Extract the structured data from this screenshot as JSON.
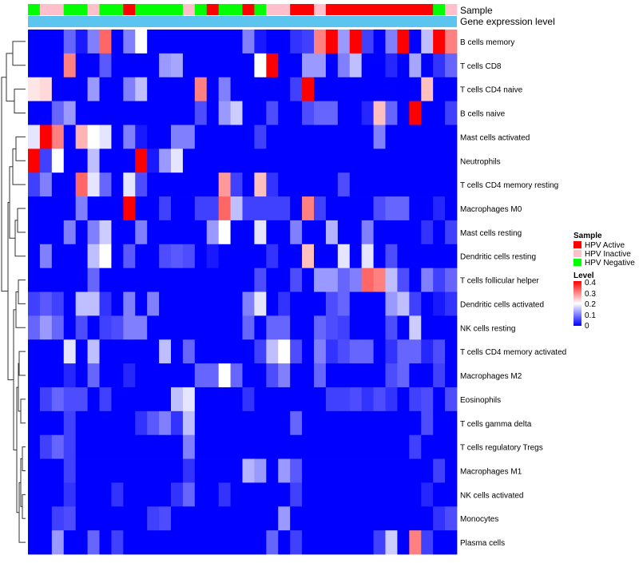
{
  "chart_data": {
    "type": "heatmap",
    "title": "",
    "annotation_tracks": [
      {
        "name": "Sample",
        "label": "Sample"
      },
      {
        "name": "Gene expression level",
        "label": "Gene expression level",
        "color": "#5bc4ef"
      }
    ],
    "sample_groups": [
      "N",
      "I",
      "I",
      "N",
      "N",
      "I",
      "N",
      "N",
      "A",
      "N",
      "N",
      "N",
      "N",
      "I",
      "N",
      "A",
      "N",
      "N",
      "A",
      "N",
      "I",
      "I",
      "A",
      "A",
      "I",
      "A",
      "A",
      "A",
      "A",
      "A",
      "A",
      "A",
      "A",
      "A",
      "N",
      "I"
    ],
    "rows": [
      "B cells memory",
      "T cells CD8",
      "T cells CD4 naive",
      "B cells naive",
      "Mast cells activated",
      "Neutrophils",
      "T cells CD4 memory resting",
      "Macrophages M0",
      "Mast cells resting",
      "Dendritic cells resting",
      "T cells follicular helper",
      "Dendritic cells activated",
      "NK cells resting",
      "T cells CD4 memory activated",
      "Macrophages M2",
      "Eosinophils",
      "T cells gamma delta",
      "T cells regulatory  Tregs",
      "Macrophages M1",
      "NK cells activated",
      "Monocytes",
      "Plasma cells"
    ],
    "values": [
      [
        0.0,
        0.0,
        0.0,
        0.08,
        0.02,
        0.1,
        0.32,
        0.0,
        0.1,
        0.2,
        0.0,
        0.0,
        0.0,
        0.0,
        0.0,
        0.0,
        0.0,
        0.0,
        0.1,
        0.02,
        0.0,
        0.0,
        0.04,
        0.05,
        0.3,
        0.4,
        0.12,
        0.4,
        0.05,
        0.0,
        0.1,
        0.4,
        0.0,
        0.15,
        0.4,
        0.3
      ],
      [
        0.0,
        0.0,
        0.0,
        0.3,
        0.0,
        0.0,
        0.07,
        0.0,
        0.0,
        0.0,
        0.0,
        0.12,
        0.13,
        0.0,
        0.0,
        0.0,
        0.0,
        0.0,
        0.0,
        0.2,
        0.4,
        0.0,
        0.0,
        0.12,
        0.12,
        0.0,
        0.1,
        0.15,
        0.0,
        0.0,
        0.03,
        0.0,
        0.13,
        0.0,
        0.04,
        0.08
      ],
      [
        0.22,
        0.23,
        0.0,
        0.0,
        0.0,
        0.12,
        0.0,
        0.0,
        0.1,
        0.15,
        0.0,
        0.0,
        0.0,
        0.0,
        0.3,
        0.0,
        0.1,
        0.0,
        0.0,
        0.0,
        0.0,
        0.0,
        0.05,
        0.4,
        0.0,
        0.0,
        0.0,
        0.0,
        0.0,
        0.0,
        0.0,
        0.0,
        0.0,
        0.25,
        0.0,
        0.0
      ],
      [
        0.0,
        0.0,
        0.08,
        0.12,
        0.0,
        0.0,
        0.0,
        0.0,
        0.0,
        0.0,
        0.0,
        0.0,
        0.0,
        0.0,
        0.06,
        0.0,
        0.12,
        0.16,
        0.0,
        0.0,
        0.06,
        0.0,
        0.0,
        0.06,
        0.08,
        0.08,
        0.0,
        0.0,
        0.03,
        0.25,
        0.08,
        0.0,
        0.4,
        0.0,
        0.0,
        0.05
      ],
      [
        0.18,
        0.4,
        0.3,
        0.0,
        0.26,
        0.2,
        0.18,
        0.0,
        0.1,
        0.02,
        0.0,
        0.0,
        0.1,
        0.1,
        0.0,
        0.0,
        0.0,
        0.0,
        0.0,
        0.05,
        0.0,
        0.0,
        0.0,
        0.0,
        0.0,
        0.0,
        0.0,
        0.0,
        0.0,
        0.1,
        0.0,
        0.0,
        0.0,
        0.0,
        0.0,
        0.0
      ],
      [
        0.4,
        0.05,
        0.2,
        0.0,
        0.0,
        0.15,
        0.0,
        0.0,
        0.0,
        0.4,
        0.02,
        0.12,
        0.18,
        0.0,
        0.0,
        0.0,
        0.0,
        0.0,
        0.0,
        0.0,
        0.0,
        0.0,
        0.0,
        0.0,
        0.0,
        0.0,
        0.0,
        0.0,
        0.0,
        0.0,
        0.0,
        0.0,
        0.0,
        0.0,
        0.0,
        0.0
      ],
      [
        0.05,
        0.1,
        0.0,
        0.0,
        0.32,
        0.18,
        0.08,
        0.0,
        0.18,
        0.06,
        0.0,
        0.0,
        0.0,
        0.0,
        0.0,
        0.0,
        0.28,
        0.05,
        0.0,
        0.25,
        0.04,
        0.0,
        0.0,
        0.0,
        0.0,
        0.0,
        0.06,
        0.0,
        0.0,
        0.0,
        0.0,
        0.0,
        0.0,
        0.0,
        0.0,
        0.0
      ],
      [
        0.0,
        0.0,
        0.0,
        0.0,
        0.1,
        0.0,
        0.0,
        0.0,
        0.4,
        0.0,
        0.0,
        0.05,
        0.0,
        0.0,
        0.05,
        0.05,
        0.32,
        0.15,
        0.05,
        0.05,
        0.05,
        0.05,
        0.0,
        0.3,
        0.05,
        0.0,
        0.0,
        0.0,
        0.0,
        0.06,
        0.08,
        0.08,
        0.0,
        0.0,
        0.03,
        0.0
      ],
      [
        0.0,
        0.0,
        0.0,
        0.1,
        0.0,
        0.1,
        0.16,
        0.0,
        0.0,
        0.1,
        0.0,
        0.0,
        0.0,
        0.0,
        0.0,
        0.12,
        0.2,
        0.0,
        0.0,
        0.18,
        0.0,
        0.0,
        0.1,
        0.0,
        0.0,
        0.14,
        0.0,
        0.0,
        0.1,
        0.0,
        0.0,
        0.0,
        0.0,
        0.04,
        0.0,
        0.05
      ],
      [
        0.0,
        0.1,
        0.0,
        0.0,
        0.0,
        0.15,
        0.2,
        0.0,
        0.07,
        0.0,
        0.0,
        0.06,
        0.07,
        0.06,
        0.0,
        0.02,
        0.0,
        0.0,
        0.0,
        0.0,
        0.04,
        0.0,
        0.0,
        0.25,
        0.0,
        0.0,
        0.18,
        0.0,
        0.18,
        0.0,
        0.06,
        0.0,
        0.0,
        0.0,
        0.0,
        0.0
      ],
      [
        0.0,
        0.0,
        0.0,
        0.0,
        0.0,
        0.08,
        0.0,
        0.0,
        0.0,
        0.0,
        0.0,
        0.0,
        0.0,
        0.0,
        0.0,
        0.0,
        0.0,
        0.0,
        0.0,
        0.06,
        0.0,
        0.0,
        0.06,
        0.0,
        0.12,
        0.12,
        0.08,
        0.1,
        0.32,
        0.3,
        0.15,
        0.06,
        0.0,
        0.1,
        0.05,
        0.08
      ],
      [
        0.05,
        0.07,
        0.05,
        0.0,
        0.15,
        0.15,
        0.04,
        0.0,
        0.1,
        0.0,
        0.1,
        0.0,
        0.0,
        0.0,
        0.0,
        0.0,
        0.0,
        0.0,
        0.1,
        0.18,
        0.0,
        0.04,
        0.0,
        0.0,
        0.0,
        0.06,
        0.08,
        0.0,
        0.0,
        0.0,
        0.12,
        0.15,
        0.05,
        0.0,
        0.02,
        0.04
      ],
      [
        0.08,
        0.12,
        0.08,
        0.0,
        0.06,
        0.0,
        0.05,
        0.06,
        0.1,
        0.1,
        0.0,
        0.0,
        0.0,
        0.0,
        0.0,
        0.0,
        0.0,
        0.0,
        0.08,
        0.0,
        0.08,
        0.08,
        0.0,
        0.0,
        0.08,
        0.06,
        0.05,
        0.0,
        0.0,
        0.0,
        0.06,
        0.0,
        0.16,
        0.0,
        0.0,
        0.0
      ],
      [
        0.0,
        0.0,
        0.0,
        0.18,
        0.0,
        0.15,
        0.0,
        0.0,
        0.0,
        0.0,
        0.0,
        0.15,
        0.0,
        0.08,
        0.0,
        0.0,
        0.0,
        0.0,
        0.0,
        0.05,
        0.15,
        0.2,
        0.06,
        0.0,
        0.1,
        0.04,
        0.06,
        0.08,
        0.08,
        0.0,
        0.04,
        0.08,
        0.08,
        0.03,
        0.06,
        0.0
      ],
      [
        0.0,
        0.0,
        0.0,
        0.03,
        0.0,
        0.08,
        0.0,
        0.0,
        0.03,
        0.0,
        0.0,
        0.0,
        0.0,
        0.0,
        0.08,
        0.08,
        0.2,
        0.08,
        0.0,
        0.0,
        0.06,
        0.1,
        0.0,
        0.0,
        0.08,
        0.0,
        0.0,
        0.0,
        0.0,
        0.0,
        0.06,
        0.08,
        0.0,
        0.0,
        0.05,
        0.0
      ],
      [
        0.0,
        0.05,
        0.08,
        0.06,
        0.06,
        0.0,
        0.05,
        0.0,
        0.0,
        0.0,
        0.0,
        0.0,
        0.15,
        0.18,
        0.0,
        0.0,
        0.0,
        0.0,
        0.04,
        0.0,
        0.0,
        0.0,
        0.0,
        0.0,
        0.0,
        0.05,
        0.05,
        0.06,
        0.04,
        0.06,
        0.04,
        0.0,
        0.05,
        0.06,
        0.0,
        0.06
      ],
      [
        0.0,
        0.0,
        0.0,
        0.05,
        0.0,
        0.0,
        0.0,
        0.0,
        0.0,
        0.04,
        0.07,
        0.1,
        0.04,
        0.15,
        0.0,
        0.0,
        0.0,
        0.0,
        0.0,
        0.0,
        0.0,
        0.0,
        0.08,
        0.0,
        0.0,
        0.0,
        0.0,
        0.0,
        0.0,
        0.0,
        0.0,
        0.0,
        0.0,
        0.06,
        0.0,
        0.0
      ],
      [
        0.0,
        0.05,
        0.08,
        0.05,
        0.0,
        0.0,
        0.0,
        0.0,
        0.0,
        0.0,
        0.0,
        0.0,
        0.0,
        0.1,
        0.0,
        0.0,
        0.0,
        0.0,
        0.0,
        0.0,
        0.0,
        0.0,
        0.0,
        0.0,
        0.0,
        0.0,
        0.0,
        0.0,
        0.0,
        0.0,
        0.0,
        0.0,
        0.05,
        0.0,
        0.0,
        0.0
      ],
      [
        0.0,
        0.0,
        0.0,
        0.05,
        0.0,
        0.0,
        0.0,
        0.0,
        0.0,
        0.0,
        0.0,
        0.0,
        0.0,
        0.04,
        0.0,
        0.0,
        0.0,
        0.0,
        0.14,
        0.12,
        0.0,
        0.12,
        0.07,
        0.0,
        0.0,
        0.0,
        0.0,
        0.0,
        0.0,
        0.0,
        0.0,
        0.0,
        0.0,
        0.0,
        0.05,
        0.0
      ],
      [
        0.0,
        0.0,
        0.0,
        0.04,
        0.0,
        0.0,
        0.0,
        0.04,
        0.0,
        0.0,
        0.0,
        0.0,
        0.04,
        0.08,
        0.0,
        0.0,
        0.04,
        0.0,
        0.0,
        0.0,
        0.0,
        0.0,
        0.05,
        0.0,
        0.0,
        0.0,
        0.0,
        0.0,
        0.0,
        0.0,
        0.0,
        0.0,
        0.0,
        0.03,
        0.0,
        0.0
      ],
      [
        0.0,
        0.0,
        0.05,
        0.06,
        0.0,
        0.0,
        0.0,
        0.0,
        0.0,
        0.0,
        0.05,
        0.06,
        0.0,
        0.0,
        0.0,
        0.0,
        0.0,
        0.0,
        0.0,
        0.0,
        0.0,
        0.12,
        0.0,
        0.0,
        0.0,
        0.0,
        0.0,
        0.0,
        0.0,
        0.0,
        0.0,
        0.0,
        0.0,
        0.0,
        0.04,
        0.06
      ],
      [
        0.0,
        0.0,
        0.12,
        0.0,
        0.0,
        0.08,
        0.0,
        0.05,
        0.0,
        0.0,
        0.0,
        0.0,
        0.0,
        0.0,
        0.0,
        0.0,
        0.0,
        0.0,
        0.0,
        0.0,
        0.08,
        0.0,
        0.05,
        0.0,
        0.0,
        0.0,
        0.0,
        0.0,
        0.0,
        0.05,
        0.16,
        0.0,
        0.3,
        0.05,
        0.0,
        0.0
      ]
    ],
    "colorscale": {
      "min": 0,
      "mid": 0.2,
      "max": 0.4,
      "low_color": "#0000ff",
      "mid_color": "#ffffff",
      "high_color": "#ff0000"
    },
    "legend": {
      "sample_title": "Sample",
      "items": [
        {
          "key": "A",
          "label": "HPV Active",
          "color": "#ff0000"
        },
        {
          "key": "I",
          "label": "HPV Inactive",
          "color": "#ffc0cb"
        },
        {
          "key": "N",
          "label": "HPV Negative",
          "color": "#00ff00"
        }
      ],
      "level_title": "Level",
      "level_ticks": [
        "0.4",
        "0.3",
        "0.2",
        "0.1",
        "0"
      ],
      "placement": "right"
    }
  }
}
